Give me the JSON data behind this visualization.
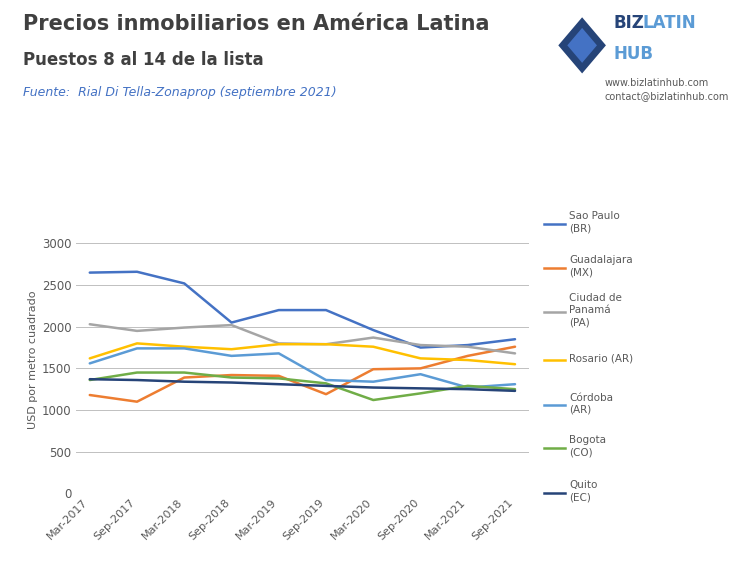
{
  "title_line1": "Precios inmobiliarios en América Latina",
  "title_line2": "Puestos 8 al 14 de la lista",
  "source": "Fuente:  Rial Di Tella-Zonaprop (septiembre 2021)",
  "ylabel": "USD por metro cuadrado",
  "website": "www.bizlatinhub.com",
  "contact": "contact@bizlatinhub.com",
  "x_labels": [
    "Mar-2017",
    "Sep-2017",
    "Mar-2018",
    "Sep-2018",
    "Mar-2019",
    "Sep-2019",
    "Mar-2020",
    "Sep-2020",
    "Mar-2021",
    "Sep-2021"
  ],
  "series": [
    {
      "name": "Sao Paulo\n(BR)",
      "color": "#4472C4",
      "data": [
        2650,
        2660,
        2520,
        2050,
        2200,
        2200,
        1960,
        1750,
        1780,
        1850
      ]
    },
    {
      "name": "Guadalajara\n(MX)",
      "color": "#ED7D31",
      "data": [
        1180,
        1100,
        1390,
        1420,
        1410,
        1190,
        1490,
        1500,
        1650,
        1760
      ]
    },
    {
      "name": "Ciudad de\nPanamá\n(PA)",
      "color": "#A5A5A5",
      "data": [
        2030,
        1950,
        1990,
        2020,
        1800,
        1790,
        1870,
        1780,
        1760,
        1680
      ]
    },
    {
      "name": "Rosario (AR)",
      "color": "#FFC000",
      "data": [
        1620,
        1800,
        1760,
        1730,
        1790,
        1790,
        1760,
        1620,
        1600,
        1550
      ]
    },
    {
      "name": "Córdoba\n(AR)",
      "color": "#5B9BD5",
      "data": [
        1560,
        1740,
        1740,
        1650,
        1680,
        1360,
        1340,
        1430,
        1270,
        1310
      ]
    },
    {
      "name": "Bogota\n(CO)",
      "color": "#70AD47",
      "data": [
        1360,
        1450,
        1450,
        1390,
        1380,
        1320,
        1120,
        1200,
        1290,
        1250
      ]
    },
    {
      "name": "Quito\n(EC)",
      "color": "#264478",
      "data": [
        1370,
        1360,
        1340,
        1330,
        1310,
        1290,
        1270,
        1260,
        1250,
        1230
      ]
    }
  ],
  "ylim": [
    0,
    3200
  ],
  "yticks": [
    0,
    500,
    1000,
    1500,
    2000,
    2500,
    3000
  ],
  "background_color": "#FFFFFF",
  "grid_color": "#C0C0C0",
  "title_color": "#404040",
  "source_color": "#4472C4",
  "title_fontsize": 15,
  "subtitle_fontsize": 12,
  "source_fontsize": 9
}
